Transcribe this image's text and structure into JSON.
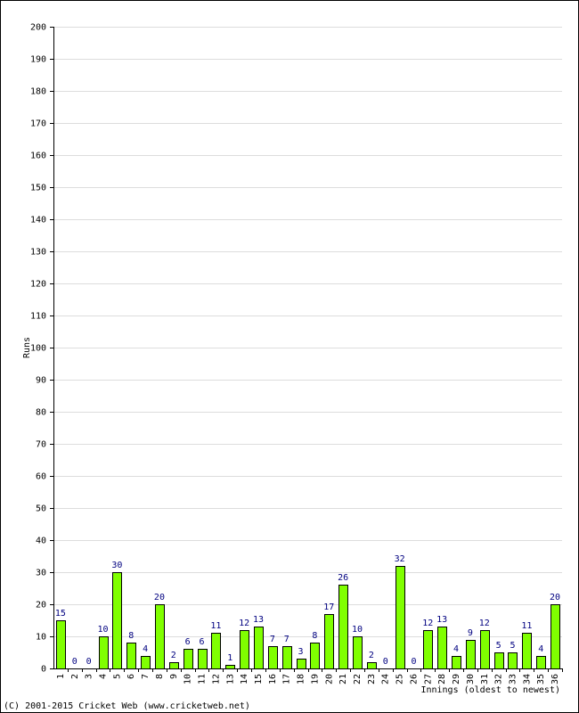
{
  "chart_data": {
    "type": "bar",
    "categories": [
      "1",
      "2",
      "3",
      "4",
      "5",
      "6",
      "7",
      "8",
      "9",
      "10",
      "11",
      "12",
      "13",
      "14",
      "15",
      "16",
      "17",
      "18",
      "19",
      "20",
      "21",
      "22",
      "23",
      "24",
      "25",
      "26",
      "27",
      "28",
      "29",
      "30",
      "31",
      "32",
      "33",
      "34",
      "35",
      "36"
    ],
    "values": [
      15,
      0,
      0,
      10,
      30,
      8,
      4,
      20,
      2,
      6,
      6,
      11,
      1,
      12,
      13,
      7,
      7,
      3,
      8,
      17,
      26,
      10,
      2,
      0,
      32,
      0,
      12,
      13,
      4,
      9,
      12,
      5,
      5,
      11,
      4,
      20
    ],
    "xlabel": "Innings (oldest to newest)",
    "ylabel": "Runs",
    "ylim": [
      0,
      200
    ],
    "yticks": [
      0,
      10,
      20,
      30,
      40,
      50,
      60,
      70,
      80,
      90,
      100,
      110,
      120,
      130,
      140,
      150,
      160,
      170,
      180,
      190,
      200
    ],
    "grid": true,
    "bar_color": "#80ff00",
    "bar_border": "#000000",
    "label_color": "#000080"
  },
  "footer": {
    "copyright": "(C) 2001-2015 Cricket Web (www.cricketweb.net)"
  }
}
